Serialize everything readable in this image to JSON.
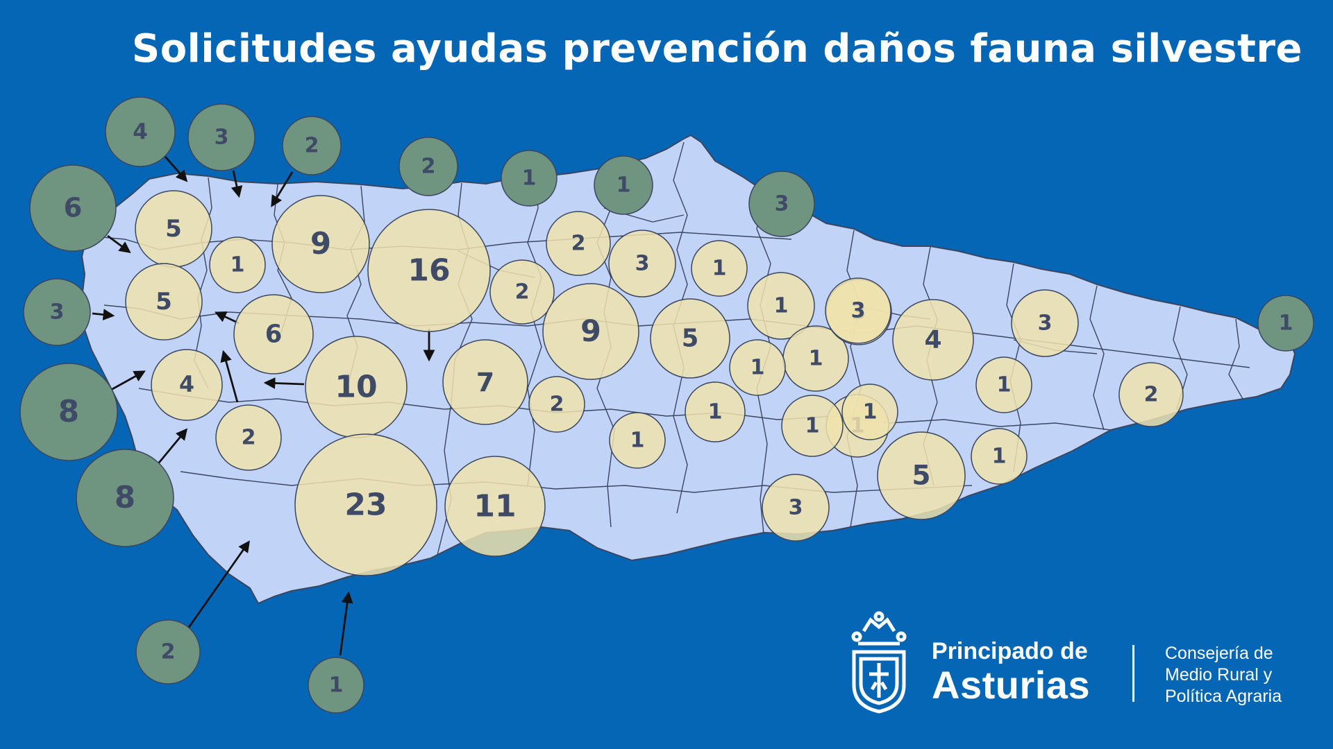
{
  "title": "Solicitudes ayudas prevención daños fauna silvestre",
  "colors": {
    "background": "#0466b4",
    "land": "#c2d3f8",
    "border": "#3a4660",
    "bubble_inland": "#efe2ad",
    "bubble_offmap": "#6f9480",
    "label": "#3f4b66"
  },
  "bubbles": [
    {
      "value": "4",
      "kind": "offmap"
    },
    {
      "value": "3",
      "kind": "offmap"
    },
    {
      "value": "2",
      "kind": "offmap"
    },
    {
      "value": "6",
      "kind": "offmap"
    },
    {
      "value": "3",
      "kind": "offmap"
    },
    {
      "value": "8",
      "kind": "offmap"
    },
    {
      "value": "8",
      "kind": "offmap"
    },
    {
      "value": "2",
      "kind": "offmap"
    },
    {
      "value": "1",
      "kind": "offmap"
    },
    {
      "value": "2",
      "kind": "offmap"
    },
    {
      "value": "1",
      "kind": "offmap"
    },
    {
      "value": "1",
      "kind": "offmap"
    },
    {
      "value": "3",
      "kind": "offmap"
    },
    {
      "value": "1",
      "kind": "offmap"
    },
    {
      "value": "5",
      "kind": "inland"
    },
    {
      "value": "1",
      "kind": "inland"
    },
    {
      "value": "9",
      "kind": "inland"
    },
    {
      "value": "16",
      "kind": "inland"
    },
    {
      "value": "5",
      "kind": "inland"
    },
    {
      "value": "6",
      "kind": "inland"
    },
    {
      "value": "4",
      "kind": "inland"
    },
    {
      "value": "10",
      "kind": "inland"
    },
    {
      "value": "2",
      "kind": "inland"
    },
    {
      "value": "23",
      "kind": "inland"
    },
    {
      "value": "7",
      "kind": "inland"
    },
    {
      "value": "11",
      "kind": "inland"
    },
    {
      "value": "2",
      "kind": "inland"
    },
    {
      "value": "2",
      "kind": "inland"
    },
    {
      "value": "3",
      "kind": "inland"
    },
    {
      "value": "9",
      "kind": "inland"
    },
    {
      "value": "1",
      "kind": "inland"
    },
    {
      "value": "1",
      "kind": "inland"
    },
    {
      "value": "1",
      "kind": "inland"
    },
    {
      "value": "1",
      "kind": "inland"
    },
    {
      "value": "5",
      "kind": "inland"
    },
    {
      "value": "1",
      "kind": "inland"
    },
    {
      "value": "1",
      "kind": "inland"
    },
    {
      "value": "2",
      "kind": "inland"
    },
    {
      "value": "3",
      "kind": "inland"
    },
    {
      "value": "1",
      "kind": "inland"
    },
    {
      "value": "1",
      "kind": "inland"
    },
    {
      "value": "1",
      "kind": "inland"
    },
    {
      "value": "3",
      "kind": "inland"
    },
    {
      "value": "4",
      "kind": "inland"
    },
    {
      "value": "5",
      "kind": "inland"
    },
    {
      "value": "3",
      "kind": "inland"
    },
    {
      "value": "1",
      "kind": "inland"
    },
    {
      "value": "1",
      "kind": "inland"
    },
    {
      "value": "3",
      "kind": "inland"
    },
    {
      "value": "2",
      "kind": "inland"
    }
  ],
  "logo": {
    "name_line1": "Principado de",
    "name_line2": "Asturias",
    "dept_line1": "Consejería de",
    "dept_line2": "Medio Rural y",
    "dept_line3": "Política Agraria"
  }
}
